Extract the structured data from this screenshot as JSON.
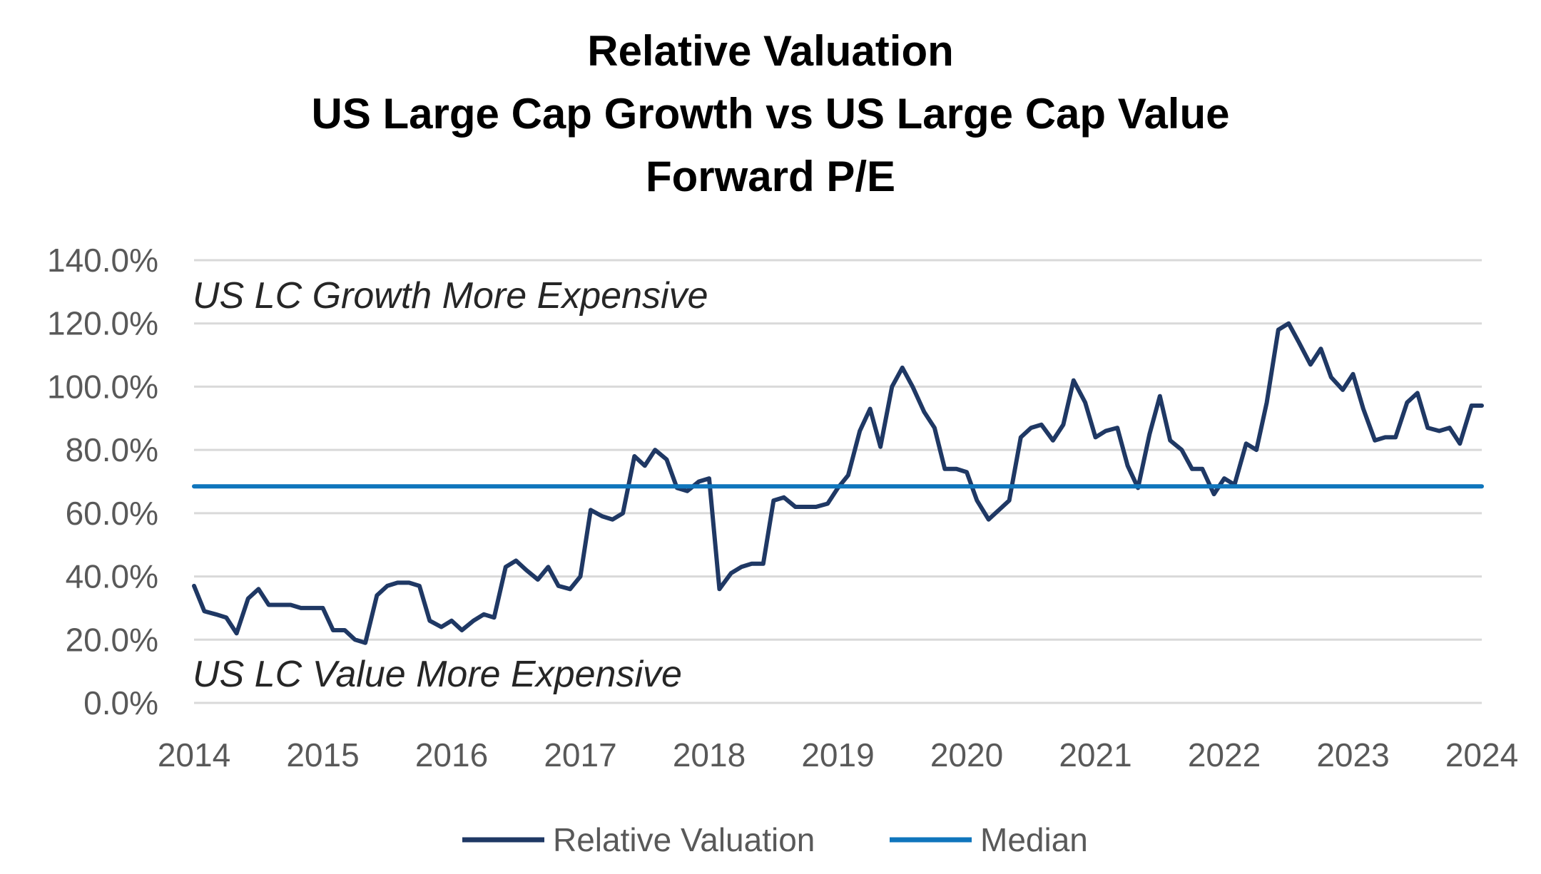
{
  "chart_data": {
    "type": "line",
    "title": [
      "Relative Valuation",
      "US Large Cap Growth vs US Large Cap Value",
      "Forward P/E"
    ],
    "xlabel": "",
    "ylabel": "",
    "x_ticks": [
      "2014",
      "2015",
      "2016",
      "2017",
      "2018",
      "2019",
      "2020",
      "2021",
      "2022",
      "2023",
      "2024"
    ],
    "y_ticks": [
      "0.0%",
      "20.0%",
      "40.0%",
      "60.0%",
      "80.0%",
      "100.0%",
      "120.0%",
      "140.0%"
    ],
    "xlim": [
      2014,
      2024
    ],
    "ylim": [
      0,
      140
    ],
    "grid": true,
    "legend_position": "bottom",
    "annotations": [
      "US LC Growth More Expensive",
      "US LC Value More Expensive"
    ],
    "colors": {
      "relative_valuation": "#1f3864",
      "median": "#0f75bc",
      "grid": "#d9d9d9"
    },
    "series": [
      {
        "name": "Relative Valuation",
        "x": [
          2014.0,
          2014.08,
          2014.17,
          2014.25,
          2014.33,
          2014.42,
          2014.5,
          2014.58,
          2014.67,
          2014.75,
          2014.83,
          2014.92,
          2015.0,
          2015.08,
          2015.17,
          2015.25,
          2015.33,
          2015.42,
          2015.5,
          2015.58,
          2015.67,
          2015.75,
          2015.83,
          2015.92,
          2016.0,
          2016.08,
          2016.17,
          2016.25,
          2016.33,
          2016.42,
          2016.5,
          2016.58,
          2016.67,
          2016.75,
          2016.83,
          2016.92,
          2017.0,
          2017.08,
          2017.17,
          2017.25,
          2017.33,
          2017.42,
          2017.5,
          2017.58,
          2017.67,
          2017.75,
          2017.83,
          2017.92,
          2018.0,
          2018.08,
          2018.17,
          2018.25,
          2018.33,
          2018.42,
          2018.5,
          2018.58,
          2018.67,
          2018.75,
          2018.83,
          2018.92,
          2019.0,
          2019.08,
          2019.17,
          2019.25,
          2019.33,
          2019.42,
          2019.5,
          2019.58,
          2019.67,
          2019.75,
          2019.83,
          2019.92,
          2020.0,
          2020.08,
          2020.17,
          2020.25,
          2020.33,
          2020.42,
          2020.5,
          2020.58,
          2020.67,
          2020.75,
          2020.83,
          2020.92,
          2021.0,
          2021.08,
          2021.17,
          2021.25,
          2021.33,
          2021.42,
          2021.5,
          2021.58,
          2021.67,
          2021.75,
          2021.83,
          2021.92,
          2022.0,
          2022.08,
          2022.17,
          2022.25,
          2022.33,
          2022.42,
          2022.5,
          2022.58,
          2022.67,
          2022.75,
          2022.83,
          2022.92,
          2023.0,
          2023.08,
          2023.17,
          2023.25,
          2023.33,
          2023.42,
          2023.5,
          2023.58,
          2023.67,
          2023.75,
          2023.83,
          2023.92,
          2024.0
        ],
        "values": [
          37,
          29,
          28,
          27,
          22,
          33,
          36,
          31,
          31,
          31,
          30,
          30,
          30,
          23,
          23,
          20,
          19,
          34,
          37,
          38,
          38,
          37,
          26,
          24,
          26,
          23,
          26,
          28,
          27,
          43,
          45,
          42,
          39,
          43,
          37,
          36,
          40,
          61,
          59,
          58,
          60,
          78,
          75,
          80,
          77,
          68,
          67,
          70,
          71,
          36,
          41,
          43,
          44,
          44,
          64,
          65,
          62,
          62,
          62,
          63,
          68,
          72,
          86,
          93,
          81,
          100,
          106,
          100,
          92,
          87,
          74,
          74,
          73,
          64,
          58,
          61,
          64,
          84,
          87,
          88,
          83,
          88,
          102,
          95,
          84,
          86,
          87,
          75,
          68,
          85,
          97,
          83,
          80,
          74,
          74,
          66,
          71,
          69,
          82,
          80,
          95,
          118,
          120,
          114,
          107,
          112,
          103,
          99,
          104,
          93,
          83,
          84,
          84,
          95,
          98,
          87,
          86,
          87,
          82,
          94,
          94
        ]
      },
      {
        "name": "Median",
        "x": [
          2014.0,
          2024.0
        ],
        "values": [
          68.5,
          68.5
        ]
      }
    ]
  }
}
